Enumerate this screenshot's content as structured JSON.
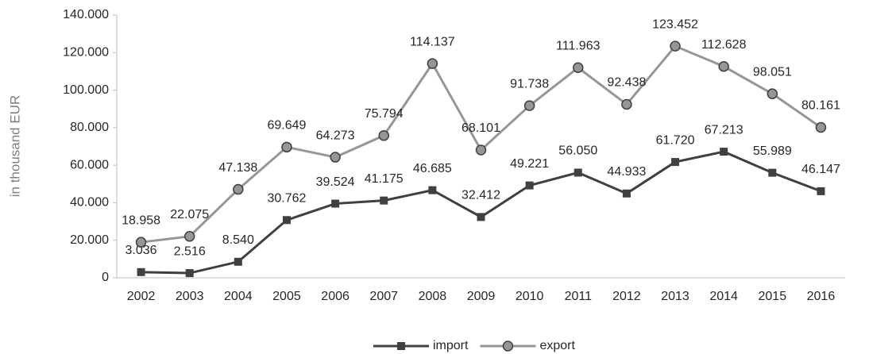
{
  "chart_data": {
    "type": "line",
    "y_label": "in thousand EUR",
    "categories": [
      "2002",
      "2003",
      "2004",
      "2005",
      "2006",
      "2007",
      "2008",
      "2009",
      "2010",
      "2011",
      "2012",
      "2013",
      "2014",
      "2015",
      "2016"
    ],
    "series": [
      {
        "name": "import",
        "color": "#404040",
        "marker": "square",
        "values": [
          3036,
          2516,
          8540,
          30762,
          39524,
          41175,
          46685,
          32412,
          49221,
          56050,
          44933,
          61720,
          67213,
          55989,
          46147
        ],
        "value_labels": [
          "3.036",
          "2.516",
          "8.540",
          "30.762",
          "39.524",
          "41.175",
          "46.685",
          "32.412",
          "49.221",
          "56.050",
          "44.933",
          "61.720",
          "67.213",
          "55.989",
          "46.147"
        ]
      },
      {
        "name": "export",
        "color": "#969696",
        "marker": "circle",
        "values": [
          18958,
          22075,
          47138,
          69649,
          64273,
          75794,
          114137,
          68101,
          91738,
          111963,
          92438,
          123452,
          112628,
          98051,
          80161
        ],
        "value_labels": [
          "18.958",
          "22.075",
          "47.138",
          "69.649",
          "64.273",
          "75.794",
          "114.137",
          "68.101",
          "91.738",
          "111.963",
          "92.438",
          "123.452",
          "112.628",
          "98.051",
          "80.161"
        ]
      }
    ],
    "ylim": [
      0,
      140000
    ],
    "yticks": [
      {
        "value": 0,
        "label": "0"
      },
      {
        "value": 20000,
        "label": "20.000"
      },
      {
        "value": 40000,
        "label": "40.000"
      },
      {
        "value": 60000,
        "label": "60.000"
      },
      {
        "value": 80000,
        "label": "80.000"
      },
      {
        "value": 100000,
        "label": "100.000"
      },
      {
        "value": 120000,
        "label": "120.000"
      },
      {
        "value": 140000,
        "label": "140.000"
      }
    ],
    "grid": false,
    "legend": "bottom"
  }
}
